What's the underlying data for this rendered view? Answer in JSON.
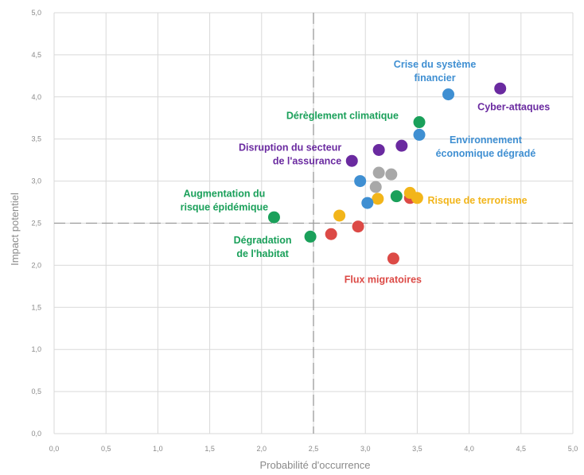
{
  "chart_data": {
    "type": "scatter",
    "xlabel": "Probabilité d'occurrence",
    "ylabel": "Impact potentiel",
    "xlim": [
      0,
      5
    ],
    "ylim": [
      0,
      5
    ],
    "x_ticks": [
      "0,0",
      "0,5",
      "1,0",
      "1,5",
      "2,0",
      "2,5",
      "3,0",
      "3,5",
      "4,0",
      "4,5",
      "5,0"
    ],
    "y_ticks": [
      "0,0",
      "0,5",
      "1,0",
      "1,5",
      "2,0",
      "2,5",
      "3,0",
      "3,5",
      "4,0",
      "4,5",
      "5,0"
    ],
    "grid": true,
    "reference_lines": {
      "x": 2.5,
      "y": 2.5
    },
    "colors": {
      "green": "#1aa05a",
      "blue": "#3f8fd2",
      "purple": "#6a2aa0",
      "orange": "#f2b51a",
      "red": "#dc4a46",
      "gray": "#a8a8a8"
    },
    "points": [
      {
        "x": 4.3,
        "y": 4.1,
        "color": "purple"
      },
      {
        "x": 3.8,
        "y": 4.03,
        "color": "blue"
      },
      {
        "x": 3.52,
        "y": 3.7,
        "color": "green"
      },
      {
        "x": 3.52,
        "y": 3.55,
        "color": "blue"
      },
      {
        "x": 3.35,
        "y": 3.42,
        "color": "purple"
      },
      {
        "x": 3.13,
        "y": 3.37,
        "color": "purple"
      },
      {
        "x": 2.87,
        "y": 3.24,
        "color": "purple"
      },
      {
        "x": 3.13,
        "y": 3.1,
        "color": "gray"
      },
      {
        "x": 3.25,
        "y": 3.08,
        "color": "gray"
      },
      {
        "x": 2.95,
        "y": 3.0,
        "color": "blue"
      },
      {
        "x": 3.1,
        "y": 2.93,
        "color": "gray"
      },
      {
        "x": 3.3,
        "y": 2.82,
        "color": "green"
      },
      {
        "x": 3.12,
        "y": 2.79,
        "color": "orange"
      },
      {
        "x": 3.02,
        "y": 2.74,
        "color": "blue"
      },
      {
        "x": 3.43,
        "y": 2.8,
        "color": "red"
      },
      {
        "x": 3.43,
        "y": 2.86,
        "color": "orange"
      },
      {
        "x": 3.5,
        "y": 2.8,
        "color": "orange"
      },
      {
        "x": 2.75,
        "y": 2.59,
        "color": "orange"
      },
      {
        "x": 2.12,
        "y": 2.57,
        "color": "green"
      },
      {
        "x": 2.93,
        "y": 2.46,
        "color": "red"
      },
      {
        "x": 2.67,
        "y": 2.37,
        "color": "red"
      },
      {
        "x": 2.47,
        "y": 2.34,
        "color": "green"
      },
      {
        "x": 3.27,
        "y": 2.08,
        "color": "red"
      }
    ],
    "annotations": [
      {
        "lines": [
          "Crise du système",
          "financier"
        ],
        "color": "blue",
        "x": 3.67,
        "y": 4.35,
        "anchor": "middle"
      },
      {
        "lines": [
          "Cyber-attaques"
        ],
        "color": "purple",
        "x": 4.43,
        "y": 3.84,
        "anchor": "middle"
      },
      {
        "lines": [
          "Dérèglement climatique"
        ],
        "color": "green",
        "x": 3.32,
        "y": 3.74,
        "anchor": "end"
      },
      {
        "lines": [
          "Environnement",
          "économique dégradé"
        ],
        "color": "blue",
        "x": 4.16,
        "y": 3.45,
        "anchor": "middle"
      },
      {
        "lines": [
          "Disruption du secteur",
          "de l'assurance"
        ],
        "color": "purple",
        "x": 2.77,
        "y": 3.36,
        "anchor": "end"
      },
      {
        "lines": [
          "Augmentation du",
          "risque épidémique"
        ],
        "color": "green",
        "x": 1.64,
        "y": 2.81,
        "anchor": "middle"
      },
      {
        "lines": [
          "Risque de terrorisme"
        ],
        "color": "orange",
        "x": 4.08,
        "y": 2.73,
        "anchor": "middle"
      },
      {
        "lines": [
          "Dégradation",
          "de l'habitat"
        ],
        "color": "green",
        "x": 2.01,
        "y": 2.26,
        "anchor": "middle"
      },
      {
        "lines": [
          "Flux migratoires"
        ],
        "color": "red",
        "x": 3.17,
        "y": 1.79,
        "anchor": "middle"
      }
    ]
  }
}
